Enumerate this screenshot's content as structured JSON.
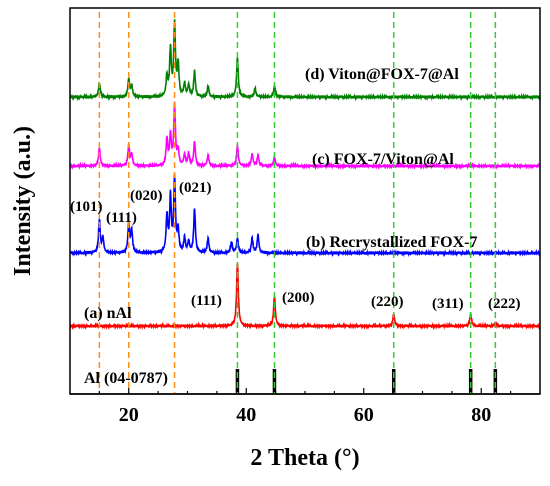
{
  "chart_data": {
    "type": "line",
    "xlabel": "2 Theta (°)",
    "ylabel": "Intensity (a.u.)",
    "xlim": [
      10,
      90
    ],
    "x_ticks": [
      20,
      40,
      60,
      80
    ],
    "x_tick_labels": [
      "20",
      "40",
      "60",
      "80"
    ],
    "series": [
      {
        "name": "(d) Viton@FOX-7@Al",
        "color": "#008000",
        "peaks": [
          [
            15.0,
            0.2
          ],
          [
            20.0,
            0.25
          ],
          [
            20.5,
            0.15
          ],
          [
            26.5,
            0.28
          ],
          [
            27.1,
            0.65
          ],
          [
            27.8,
            1.0
          ],
          [
            28.4,
            0.45
          ],
          [
            29.5,
            0.18
          ],
          [
            30.2,
            0.16
          ],
          [
            31.2,
            0.35
          ],
          [
            33.5,
            0.15
          ],
          [
            38.5,
            0.55
          ],
          [
            41.5,
            0.12
          ],
          [
            44.8,
            0.15
          ]
        ]
      },
      {
        "name": "(c) FOX-7/Viton@Al",
        "color": "#ff00ff",
        "peaks": [
          [
            15.0,
            0.3
          ],
          [
            20.0,
            0.35
          ],
          [
            20.5,
            0.18
          ],
          [
            26.5,
            0.45
          ],
          [
            27.1,
            0.5
          ],
          [
            27.8,
            1.0
          ],
          [
            28.4,
            0.25
          ],
          [
            29.5,
            0.18
          ],
          [
            30.2,
            0.2
          ],
          [
            31.2,
            0.4
          ],
          [
            33.5,
            0.18
          ],
          [
            38.5,
            0.35
          ],
          [
            41.0,
            0.2
          ],
          [
            42.0,
            0.18
          ],
          [
            44.8,
            0.15
          ]
        ]
      },
      {
        "name": "(b) Recrystallized FOX-7",
        "color": "#0000ff",
        "peaks": [
          [
            15.0,
            0.45
          ],
          [
            15.6,
            0.2
          ],
          [
            20.0,
            0.4
          ],
          [
            20.5,
            0.3
          ],
          [
            26.5,
            0.5
          ],
          [
            27.1,
            0.75
          ],
          [
            27.8,
            1.0
          ],
          [
            28.4,
            0.3
          ],
          [
            29.5,
            0.2
          ],
          [
            30.2,
            0.15
          ],
          [
            31.2,
            0.6
          ],
          [
            33.5,
            0.2
          ],
          [
            37.5,
            0.15
          ],
          [
            38.5,
            0.2
          ],
          [
            41.0,
            0.2
          ],
          [
            42.0,
            0.25
          ]
        ]
      },
      {
        "name": "(a) nAl",
        "color": "#ff0000",
        "peaks": [
          [
            38.5,
            1.0
          ],
          [
            44.8,
            0.47
          ],
          [
            65.1,
            0.19
          ],
          [
            78.2,
            0.19
          ],
          [
            82.4,
            0.05
          ]
        ]
      }
    ],
    "reference": {
      "name": "Al (04-0787)",
      "color": "#000000",
      "positions": [
        38.5,
        44.8,
        65.1,
        78.2,
        82.4
      ]
    },
    "guide_lines": [
      {
        "color": "#ff8c1a",
        "style": "dashed",
        "x": [
          15.0,
          20.0,
          27.8
        ]
      },
      {
        "color": "#33cc33",
        "style": "dashed",
        "x": [
          38.5,
          44.8,
          65.1,
          78.2,
          82.4
        ]
      }
    ],
    "annotations": {
      "fox7_hkl": [
        {
          "text": "(101)",
          "x": 15.0
        },
        {
          "text": "(111)",
          "x": 20.0
        },
        {
          "text": "(020)",
          "x": 26.5
        },
        {
          "text": "(021)",
          "x": 27.8
        }
      ],
      "al_hkl": [
        {
          "text": "(111)",
          "x": 38.5
        },
        {
          "text": "(200)",
          "x": 44.8
        },
        {
          "text": "(220)",
          "x": 65.1
        },
        {
          "text": "(311)",
          "x": 78.2
        },
        {
          "text": "(222)",
          "x": 82.4
        }
      ]
    },
    "legend": "inline labels beside each trace"
  }
}
